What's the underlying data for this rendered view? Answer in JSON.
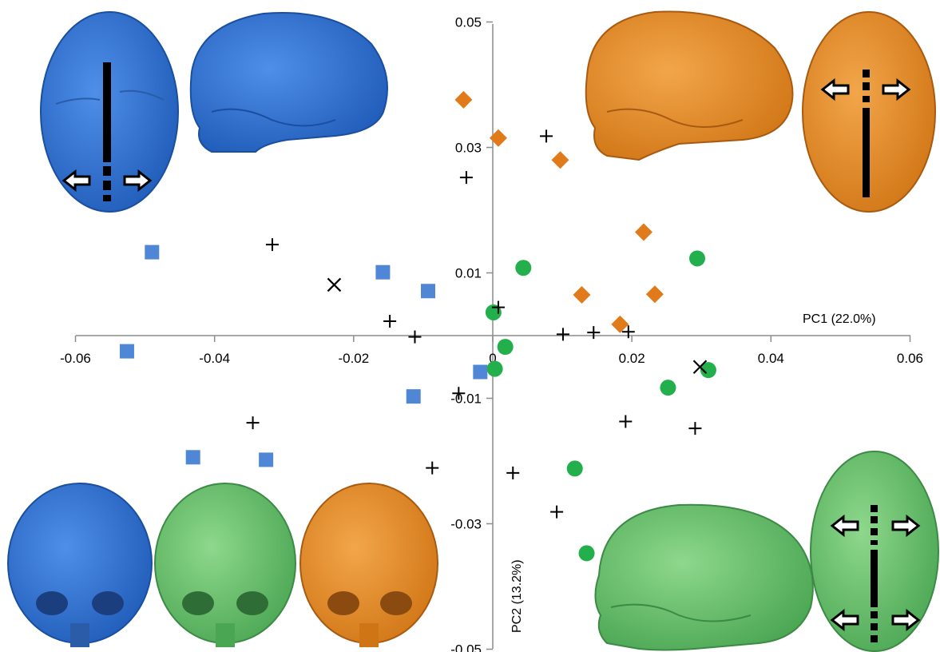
{
  "chart_data": {
    "type": "scatter",
    "title": "",
    "xlabel": "PC1 (22.0%)",
    "ylabel": "PC2 (13.2%)",
    "xlim": [
      -0.06,
      0.06
    ],
    "ylim": [
      -0.05,
      0.05
    ],
    "xticks": [
      "-0.06",
      "-0.04",
      "-0.02",
      "0",
      "0.02",
      "0.04",
      "0.06"
    ],
    "yticks": [
      "0.05",
      "0.03",
      "0.01",
      "-0.01",
      "-0.03",
      "-0.05"
    ],
    "grid": false,
    "legend": "none",
    "series": [
      {
        "marker": "square",
        "color": "#4F87D6",
        "points": [
          [
            -0.049,
            0.0133
          ],
          [
            -0.0526,
            -0.0025
          ],
          [
            -0.0158,
            0.0101
          ],
          [
            -0.0093,
            0.0071
          ],
          [
            -0.0114,
            -0.0097
          ],
          [
            -0.0018,
            -0.0058
          ],
          [
            -0.0431,
            -0.0194
          ],
          [
            -0.0326,
            -0.0198
          ]
        ]
      },
      {
        "marker": "diamond",
        "color": "#E07A1A",
        "points": [
          [
            -0.0042,
            0.0376
          ],
          [
            0.0008,
            0.0315
          ],
          [
            0.0097,
            0.028
          ],
          [
            0.0217,
            0.0165
          ],
          [
            0.0128,
            0.0065
          ],
          [
            0.0233,
            0.0066
          ],
          [
            0.0183,
            0.0018
          ]
        ]
      },
      {
        "marker": "circle",
        "color": "#22AF4C",
        "points": [
          [
            0.0044,
            0.0108
          ],
          [
            0.0294,
            0.0123
          ],
          [
            0.0001,
            0.0037
          ],
          [
            0.0018,
            -0.0018
          ],
          [
            0.0003,
            -0.0053
          ],
          [
            0.031,
            -0.0055
          ],
          [
            0.0252,
            -0.0083
          ],
          [
            0.0118,
            -0.0212
          ],
          [
            0.0135,
            -0.0347
          ]
        ]
      },
      {
        "marker": "plus",
        "color": "#000000",
        "points": [
          [
            0.0077,
            0.0318
          ],
          [
            -0.0038,
            0.0252
          ],
          [
            -0.0317,
            0.0145
          ],
          [
            0.0008,
            0.0045
          ],
          [
            -0.0148,
            0.0023
          ],
          [
            -0.0112,
            -0.0002
          ],
          [
            0.0101,
            0.0002
          ],
          [
            0.0145,
            0.0005
          ],
          [
            0.0195,
            0.0006
          ],
          [
            -0.0049,
            -0.0092
          ],
          [
            -0.0345,
            -0.0139
          ],
          [
            0.0191,
            -0.0137
          ],
          [
            0.0291,
            -0.0148
          ],
          [
            -0.0087,
            -0.0211
          ],
          [
            0.0029,
            -0.0219
          ],
          [
            0.0092,
            -0.0281
          ]
        ]
      },
      {
        "marker": "cross",
        "color": "#000000",
        "points": [
          [
            -0.0228,
            0.0081
          ],
          [
            0.0298,
            -0.005
          ]
        ]
      }
    ]
  }
}
